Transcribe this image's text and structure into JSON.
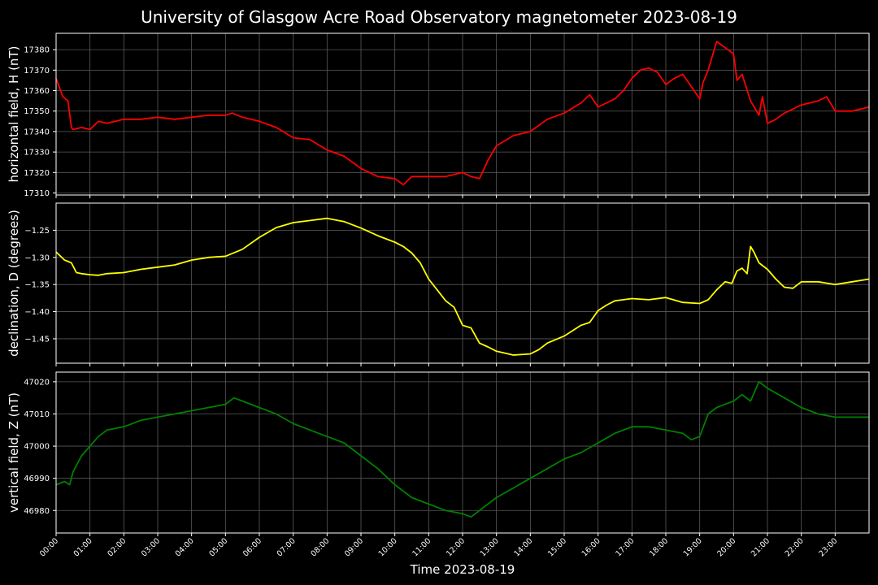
{
  "title": "University of Glasgow Acre Road Observatory magnetometer 2023-08-19",
  "xlabel": "Time 2023-08-19",
  "x_ticks": [
    "00:00",
    "01:00",
    "02:00",
    "03:00",
    "04:00",
    "05:00",
    "06:00",
    "07:00",
    "08:00",
    "09:00",
    "10:00",
    "11:00",
    "12:00",
    "13:00",
    "14:00",
    "15:00",
    "16:00",
    "17:00",
    "18:00",
    "19:00",
    "20:00",
    "21:00",
    "22:00",
    "23:00"
  ],
  "colors": {
    "background": "#000000",
    "grid": "#5a5a5a",
    "axes": "#ffffff",
    "H": "#ff0000",
    "D": "#ffff00",
    "Z": "#008000"
  },
  "chart_data": [
    {
      "type": "line",
      "ylabel": "horizontal field, H (nT)",
      "ylim": [
        17309,
        17388
      ],
      "yticks": [
        17310,
        17320,
        17330,
        17340,
        17350,
        17360,
        17370,
        17380
      ],
      "color": "#ff0000",
      "grid": true,
      "x": [
        0,
        0.2,
        0.35,
        0.45,
        0.5,
        0.75,
        1.0,
        1.25,
        1.5,
        2,
        2.5,
        3,
        3.5,
        4,
        4.5,
        5,
        5.2,
        5.5,
        6,
        6.5,
        7,
        7.5,
        8,
        8.5,
        9,
        9.5,
        10,
        10.25,
        10.5,
        11,
        11.5,
        12,
        12.25,
        12.5,
        12.75,
        13,
        13.5,
        14,
        14.5,
        15,
        15.5,
        15.75,
        16,
        16.5,
        16.75,
        17,
        17.25,
        17.5,
        17.75,
        18,
        18.25,
        18.5,
        18.75,
        19,
        19.1,
        19.25,
        19.5,
        19.75,
        20,
        20.1,
        20.25,
        20.5,
        20.75,
        20.85,
        21,
        21.25,
        21.5,
        22,
        22.5,
        22.75,
        23,
        23.5,
        24
      ],
      "y": [
        17366,
        17357,
        17355,
        17342,
        17341,
        17342,
        17341,
        17345,
        17344,
        17346,
        17346,
        17347,
        17346,
        17347,
        17348,
        17348,
        17349,
        17347,
        17345,
        17342,
        17337,
        17336,
        17331,
        17328,
        17322,
        17318,
        17317,
        17314,
        17318,
        17318,
        17318,
        17320,
        17318,
        17317,
        17326,
        17333,
        17338,
        17340,
        17346,
        17349,
        17354,
        17358,
        17352,
        17356,
        17360,
        17366,
        17370,
        17371,
        17369,
        17363,
        17366,
        17368,
        17362,
        17356,
        17364,
        17370,
        17384,
        17381,
        17378,
        17365,
        17368,
        17355,
        17348,
        17357,
        17344,
        17346,
        17349,
        17353,
        17355,
        17357,
        17350,
        17350,
        17352
      ]
    },
    {
      "type": "line",
      "ylabel": "declination, D (degrees)",
      "ylim": [
        -1.495,
        -1.2
      ],
      "yticks": [
        -1.25,
        -1.3,
        -1.35,
        -1.4,
        -1.45
      ],
      "ytick_labels": [
        "−1.25",
        "−1.30",
        "−1.35",
        "−1.40",
        "−1.45"
      ],
      "color": "#ffff00",
      "grid": true,
      "x": [
        0,
        0.25,
        0.45,
        0.6,
        0.75,
        1,
        1.25,
        1.5,
        2,
        2.5,
        3,
        3.5,
        4,
        4.5,
        5,
        5.5,
        6,
        6.5,
        7,
        7.5,
        8,
        8.5,
        9,
        9.5,
        10,
        10.25,
        10.5,
        10.75,
        11,
        11.25,
        11.5,
        11.75,
        12,
        12.25,
        12.5,
        12.75,
        13,
        13.5,
        14,
        14.25,
        14.5,
        15,
        15.5,
        15.75,
        16,
        16.25,
        16.5,
        17,
        17.5,
        18,
        18.5,
        19,
        19.25,
        19.5,
        19.75,
        19.95,
        20.1,
        20.25,
        20.4,
        20.5,
        20.6,
        20.75,
        21,
        21.25,
        21.5,
        21.75,
        22,
        22.5,
        23,
        23.5,
        24
      ],
      "y": [
        -1.29,
        -1.305,
        -1.31,
        -1.328,
        -1.33,
        -1.332,
        -1.333,
        -1.33,
        -1.328,
        -1.322,
        -1.318,
        -1.314,
        -1.305,
        -1.3,
        -1.298,
        -1.285,
        -1.263,
        -1.245,
        -1.236,
        -1.232,
        -1.228,
        -1.234,
        -1.246,
        -1.26,
        -1.272,
        -1.28,
        -1.292,
        -1.31,
        -1.34,
        -1.36,
        -1.38,
        -1.392,
        -1.425,
        -1.43,
        -1.458,
        -1.465,
        -1.473,
        -1.48,
        -1.478,
        -1.47,
        -1.458,
        -1.445,
        -1.425,
        -1.42,
        -1.398,
        -1.388,
        -1.38,
        -1.376,
        -1.378,
        -1.374,
        -1.383,
        -1.385,
        -1.378,
        -1.36,
        -1.345,
        -1.348,
        -1.325,
        -1.32,
        -1.33,
        -1.28,
        -1.29,
        -1.31,
        -1.322,
        -1.34,
        -1.355,
        -1.357,
        -1.345,
        -1.345,
        -1.35,
        -1.345,
        -1.34
      ]
    },
    {
      "type": "line",
      "ylabel": "vertical field, Z (nT)",
      "ylim": [
        46973,
        47023
      ],
      "yticks": [
        46980,
        46990,
        47000,
        47010,
        47020
      ],
      "color": "#008000",
      "grid": true,
      "x": [
        0,
        0.25,
        0.4,
        0.5,
        0.75,
        1,
        1.25,
        1.5,
        2,
        2.5,
        3,
        3.5,
        4,
        4.5,
        5,
        5.25,
        5.5,
        6,
        6.5,
        7,
        7.5,
        8,
        8.5,
        9,
        9.5,
        10,
        10.5,
        11,
        11.5,
        12,
        12.25,
        12.5,
        13,
        13.5,
        14,
        14.5,
        15,
        15.5,
        16,
        16.5,
        17,
        17.5,
        18,
        18.5,
        18.75,
        19,
        19.25,
        19.5,
        20,
        20.25,
        20.5,
        20.75,
        21,
        21.5,
        22,
        22.5,
        23,
        23.5,
        24
      ],
      "y": [
        46988,
        46989,
        46988,
        46992,
        46997,
        47000,
        47003,
        47005,
        47006,
        47008,
        47009,
        47010,
        47011,
        47012,
        47013,
        47015,
        47014,
        47012,
        47010,
        47007,
        47005,
        47003,
        47001,
        46997,
        46993,
        46988,
        46984,
        46982,
        46980,
        46979,
        46978,
        46980,
        46984,
        46987,
        46990,
        46993,
        46996,
        46998,
        47001,
        47004,
        47006,
        47006,
        47005,
        47004,
        47002,
        47003,
        47010,
        47012,
        47014,
        47016,
        47014,
        47020,
        47018,
        47015,
        47012,
        47010,
        47009,
        47009,
        47009
      ]
    }
  ]
}
